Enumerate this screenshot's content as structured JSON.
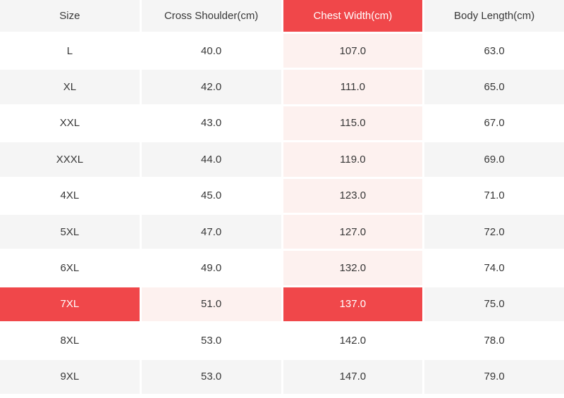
{
  "size_chart": {
    "columns": [
      "Size",
      "Cross Shoulder(cm)",
      "Chest Width(cm)",
      "Body Length(cm)"
    ],
    "rows": [
      [
        "L",
        "40.0",
        "107.0",
        "63.0"
      ],
      [
        "XL",
        "42.0",
        "111.0",
        "65.0"
      ],
      [
        "XXL",
        "43.0",
        "115.0",
        "67.0"
      ],
      [
        "XXXL",
        "44.0",
        "119.0",
        "69.0"
      ],
      [
        "4XL",
        "45.0",
        "123.0",
        "71.0"
      ],
      [
        "5XL",
        "47.0",
        "127.0",
        "72.0"
      ],
      [
        "6XL",
        "49.0",
        "132.0",
        "74.0"
      ],
      [
        "7XL",
        "51.0",
        "137.0",
        "75.0"
      ],
      [
        "8XL",
        "53.0",
        "142.0",
        "78.0"
      ],
      [
        "9XL",
        "53.0",
        "147.0",
        "79.0"
      ]
    ],
    "selected_size": "7XL",
    "selected_column": "Chest Width(cm)",
    "selected_row_index": 7,
    "selected_column_index": 2,
    "colors": {
      "highlight_red": "#f0474a",
      "highlight_pink": "#fdf1ef",
      "row_stripe": "#f5f5f5",
      "text": "#373737",
      "selected_text": "#ffffff"
    }
  }
}
